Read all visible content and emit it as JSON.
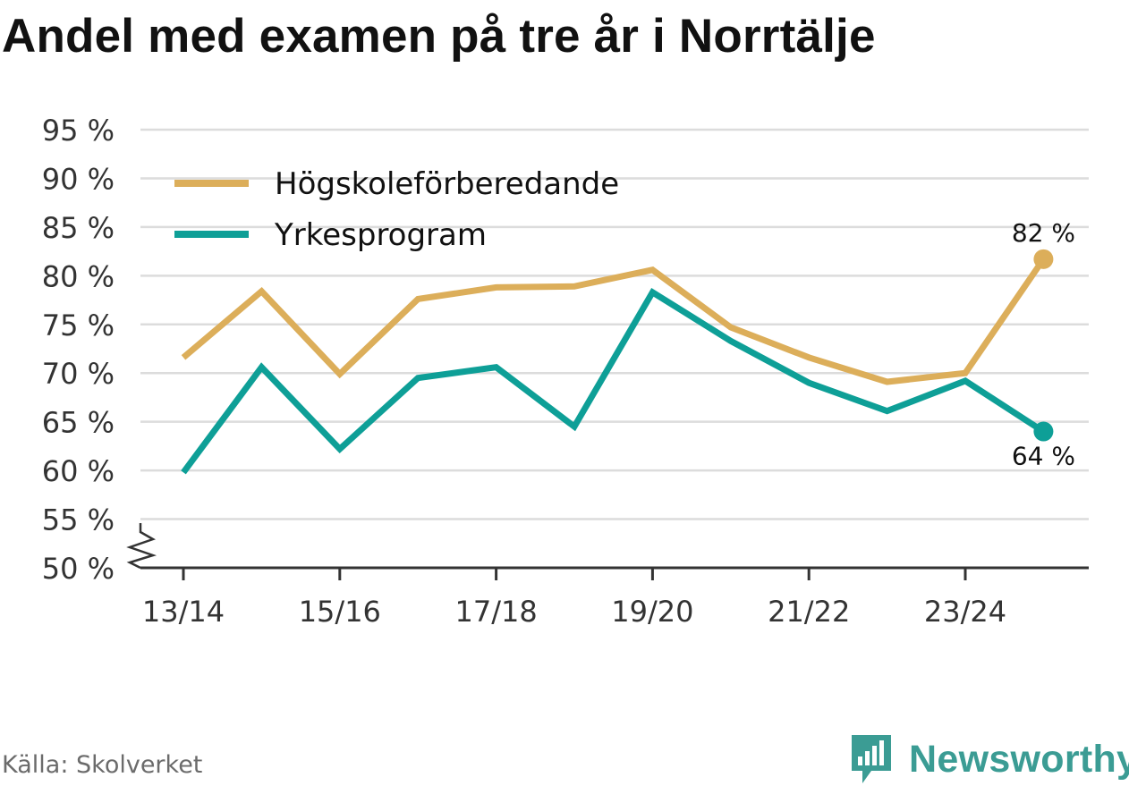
{
  "title": "Andel med examen på tre år i Norrtälje",
  "source": "Källa: Skolverket",
  "brand": "Newsworthy",
  "colors": {
    "series1": "#dcae5a",
    "series2": "#0e9f97",
    "grid": "#dcdcdc",
    "axis": "#333333",
    "brand": "#3b9c94"
  },
  "chart_data": {
    "type": "line",
    "title": "Andel med examen på tre år i Norrtälje",
    "xlabel": "",
    "ylabel": "",
    "categories": [
      "13/14",
      "14/15",
      "15/16",
      "16/17",
      "17/18",
      "18/19",
      "19/20",
      "20/21",
      "21/22",
      "22/23",
      "23/24",
      "24/25"
    ],
    "x_tick_labels": [
      "13/14",
      "15/16",
      "17/18",
      "19/20",
      "21/22",
      "23/24"
    ],
    "y_tick_labels": [
      "50 %",
      "55 %",
      "60 %",
      "65 %",
      "70 %",
      "75 %",
      "80 %",
      "85 %",
      "90 %",
      "95 %"
    ],
    "ylim": [
      50,
      95
    ],
    "y_break": true,
    "grid": true,
    "legend_position": "top-left",
    "series": [
      {
        "name": "Högskoleförberedande",
        "color": "#dcae5a",
        "values": [
          71.6,
          78.4,
          69.9,
          77.6,
          78.8,
          78.9,
          80.6,
          74.7,
          71.6,
          69.1,
          70.0,
          81.7
        ],
        "end_label": "82 %"
      },
      {
        "name": "Yrkesprogram",
        "color": "#0e9f97",
        "values": [
          59.8,
          70.6,
          62.2,
          69.5,
          70.6,
          64.5,
          78.3,
          73.3,
          69.0,
          66.1,
          69.2,
          64.0
        ],
        "end_label": "64 %"
      }
    ]
  }
}
